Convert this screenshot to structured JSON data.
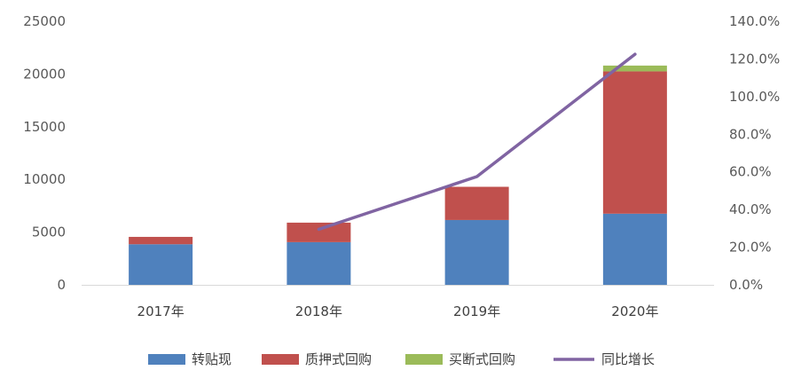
{
  "chart_data": {
    "type": "bar",
    "stacked": true,
    "categories": [
      "2017年",
      "2018年",
      "2019年",
      "2020年"
    ],
    "series": [
      {
        "name": "转贴现",
        "type": "bar",
        "axis": "left",
        "color": "#4f81bd",
        "values": [
          3850,
          4050,
          6150,
          6750
        ]
      },
      {
        "name": "质押式回购",
        "type": "bar",
        "axis": "left",
        "color": "#c0504d",
        "values": [
          700,
          1850,
          3150,
          13500
        ]
      },
      {
        "name": "买断式回购",
        "type": "bar",
        "axis": "left",
        "color": "#9bbb59",
        "values": [
          0,
          0,
          0,
          550
        ]
      },
      {
        "name": "同比增长",
        "type": "line",
        "axis": "right",
        "color": "#8064a2",
        "values": [
          null,
          29.5,
          57.5,
          122.5
        ]
      }
    ],
    "ylim": [
      0,
      25000
    ],
    "y_ticks": [
      "0",
      "5000",
      "10000",
      "15000",
      "20000",
      "25000"
    ],
    "y2lim": [
      0,
      140
    ],
    "y2_ticks": [
      "0.0%",
      "20.0%",
      "40.0%",
      "60.0%",
      "80.0%",
      "100.0%",
      "120.0%",
      "140.0%"
    ],
    "xlabel": "",
    "ylabel": "",
    "title": "",
    "grid": false,
    "legend": "bottom"
  }
}
